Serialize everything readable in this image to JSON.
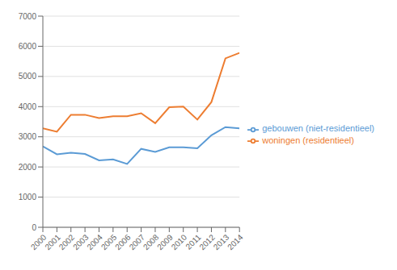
{
  "chart_data": {
    "type": "line",
    "x": [
      2000,
      2001,
      2002,
      2003,
      2004,
      2005,
      2006,
      2007,
      2008,
      2009,
      2010,
      2011,
      2012,
      2013,
      2014
    ],
    "series": [
      {
        "name": "gebouwen (niet-residentieel)",
        "color": "#5b9bd5",
        "values": [
          2680,
          2420,
          2470,
          2430,
          2220,
          2250,
          2100,
          2600,
          2500,
          2650,
          2650,
          2620,
          3050,
          3320,
          3280
        ]
      },
      {
        "name": "woningen (residentieel)",
        "color": "#ed7d31",
        "values": [
          3280,
          3170,
          3730,
          3730,
          3620,
          3680,
          3680,
          3780,
          3450,
          3980,
          4000,
          3570,
          4150,
          5600,
          5780
        ]
      }
    ],
    "xlim": [
      2000,
      2014
    ],
    "xticks": [
      2000,
      2001,
      2002,
      2003,
      2004,
      2005,
      2006,
      2007,
      2008,
      2009,
      2010,
      2011,
      2012,
      2013,
      2014
    ],
    "ylim": [
      0,
      7000
    ],
    "yticks": [
      0,
      1000,
      2000,
      3000,
      4000,
      5000,
      6000,
      7000
    ],
    "grid": "y",
    "legend": "right"
  }
}
